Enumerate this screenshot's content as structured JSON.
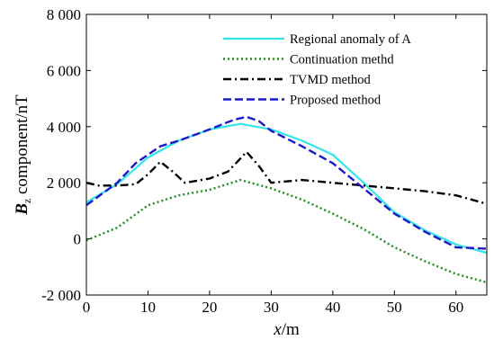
{
  "chart_data": {
    "type": "line",
    "xlabel_var": "x",
    "xlabel_unit": "/m",
    "ylabel_var": "B",
    "ylabel_sub": "z",
    "ylabel_rest": " component/nT",
    "xlim": [
      0,
      65
    ],
    "ylim": [
      -2000,
      8000
    ],
    "x_ticks": [
      0,
      10,
      20,
      30,
      40,
      50,
      60
    ],
    "x_tick_labels": [
      "0",
      "10",
      "20",
      "30",
      "40",
      "50",
      "60"
    ],
    "y_ticks": [
      -2000,
      0,
      2000,
      4000,
      6000,
      8000
    ],
    "y_tick_labels": [
      "-2 000",
      "0",
      "2 000",
      "4 000",
      "6 000",
      "8 000"
    ],
    "grid": false,
    "legend_position": "top-right",
    "series": [
      {
        "name": "Regional anomaly of A",
        "color": "#33e6e6",
        "style": "solid",
        "points": [
          [
            0,
            1300
          ],
          [
            5,
            1950
          ],
          [
            10,
            2900
          ],
          [
            15,
            3500
          ],
          [
            20,
            3900
          ],
          [
            25,
            4100
          ],
          [
            30,
            3900
          ],
          [
            35,
            3500
          ],
          [
            40,
            3000
          ],
          [
            45,
            2000
          ],
          [
            50,
            950
          ],
          [
            55,
            300
          ],
          [
            60,
            -200
          ],
          [
            65,
            -500
          ]
        ]
      },
      {
        "name": "Continuation methd",
        "color": "#1a8f1a",
        "style": "dotted",
        "points": [
          [
            0,
            -50
          ],
          [
            5,
            400
          ],
          [
            10,
            1200
          ],
          [
            15,
            1550
          ],
          [
            20,
            1750
          ],
          [
            25,
            2100
          ],
          [
            30,
            1800
          ],
          [
            35,
            1400
          ],
          [
            40,
            900
          ],
          [
            45,
            350
          ],
          [
            50,
            -300
          ],
          [
            55,
            -800
          ],
          [
            60,
            -1250
          ],
          [
            65,
            -1550
          ]
        ]
      },
      {
        "name": "TVMD method",
        "color": "#000000",
        "style": "dashdot",
        "points": [
          [
            0,
            2000
          ],
          [
            2,
            1900
          ],
          [
            5,
            1900
          ],
          [
            8,
            1950
          ],
          [
            10,
            2300
          ],
          [
            12,
            2750
          ],
          [
            14,
            2400
          ],
          [
            16,
            2000
          ],
          [
            20,
            2150
          ],
          [
            23,
            2400
          ],
          [
            26,
            3100
          ],
          [
            28,
            2600
          ],
          [
            30,
            2000
          ],
          [
            35,
            2100
          ],
          [
            40,
            2000
          ],
          [
            45,
            1900
          ],
          [
            50,
            1800
          ],
          [
            55,
            1700
          ],
          [
            60,
            1550
          ],
          [
            65,
            1250
          ]
        ]
      },
      {
        "name": "Proposed method",
        "color": "#1a1acc",
        "style": "dashed",
        "points": [
          [
            0,
            1200
          ],
          [
            5,
            2000
          ],
          [
            8,
            2700
          ],
          [
            12,
            3300
          ],
          [
            15,
            3500
          ],
          [
            20,
            3900
          ],
          [
            24,
            4250
          ],
          [
            26,
            4350
          ],
          [
            28,
            4200
          ],
          [
            30,
            3850
          ],
          [
            35,
            3300
          ],
          [
            40,
            2700
          ],
          [
            45,
            1800
          ],
          [
            50,
            900
          ],
          [
            55,
            250
          ],
          [
            60,
            -300
          ],
          [
            65,
            -350
          ]
        ]
      }
    ]
  }
}
